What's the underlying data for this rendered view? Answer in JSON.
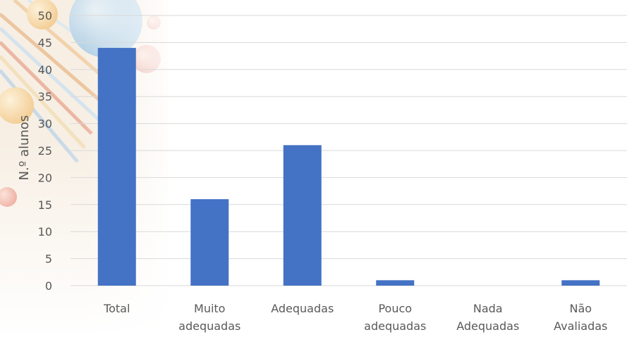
{
  "chart_data": {
    "type": "bar",
    "categories": [
      [
        "Total"
      ],
      [
        "Muito",
        "adequadas"
      ],
      [
        "Adequadas"
      ],
      [
        "Pouco",
        "adequadas"
      ],
      [
        "Nada",
        "Adequadas"
      ],
      [
        "Não",
        "Avaliadas"
      ]
    ],
    "values": [
      44,
      16,
      26,
      1,
      0,
      1
    ],
    "title": "",
    "xlabel": "",
    "ylabel": "N.º alunos",
    "ylim": [
      0,
      50
    ],
    "yticks": [
      0,
      5,
      10,
      15,
      20,
      25,
      30,
      35,
      40,
      45,
      50
    ],
    "grid": true,
    "legend": "none",
    "bar_color": "#4472c4",
    "decoration_colors": [
      "#b7d4ea",
      "#f2c9a0",
      "#e88070",
      "#f5e6c8"
    ]
  }
}
